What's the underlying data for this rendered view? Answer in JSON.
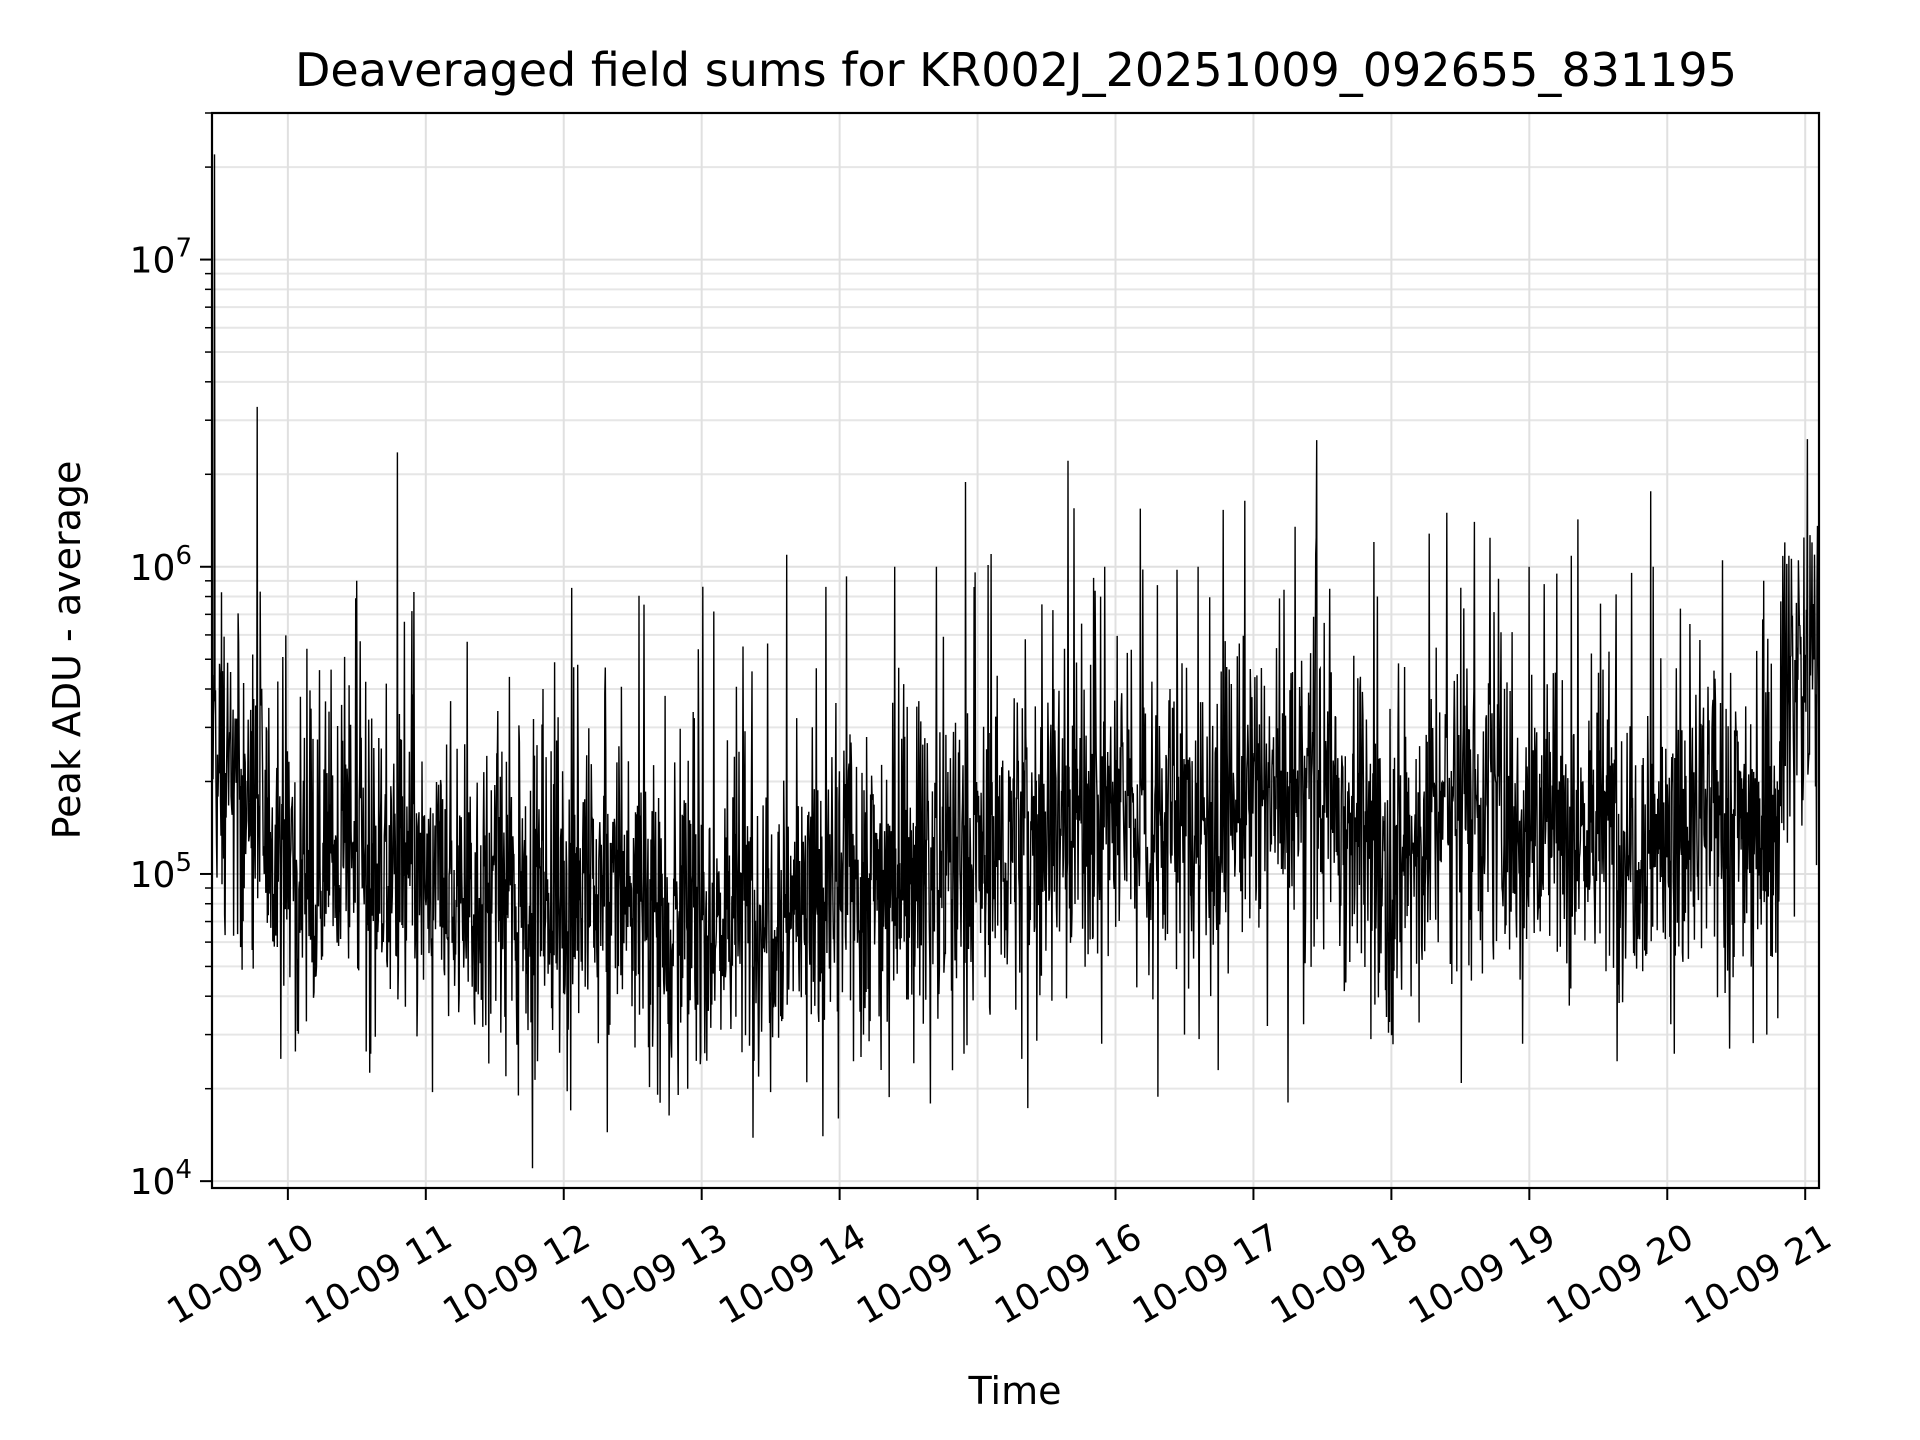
{
  "chart_data": {
    "type": "line",
    "title": "Deaveraged field sums for KR002J_20251009_092655_831195",
    "xlabel": "Time",
    "ylabel": "Peak ADU - average",
    "yscale": "log",
    "ylim": [
      9500,
      30000000
    ],
    "xlim_hours": [
      9.45,
      21.1
    ],
    "grid": true,
    "line_color": "#000000",
    "x_tick_labels": [
      "10-09 10",
      "10-09 11",
      "10-09 12",
      "10-09 13",
      "10-09 14",
      "10-09 15",
      "10-09 16",
      "10-09 17",
      "10-09 18",
      "10-09 19",
      "10-09 20",
      "10-09 21"
    ],
    "x_tick_hours": [
      10,
      11,
      12,
      13,
      14,
      15,
      16,
      17,
      18,
      19,
      20,
      21
    ],
    "y_tick_labels": [
      {
        "base": "10",
        "exp": "4",
        "value": 10000
      },
      {
        "base": "10",
        "exp": "5",
        "value": 100000
      },
      {
        "base": "10",
        "exp": "6",
        "value": 1000000
      },
      {
        "base": "10",
        "exp": "7",
        "value": 10000000
      }
    ],
    "series": [
      {
        "name": "deaveraged field sum",
        "baseline_hours": [
          9.45,
          9.6,
          10.0,
          10.5,
          11.0,
          11.5,
          12.0,
          12.5,
          13.0,
          13.5,
          14.0,
          14.5,
          15.0,
          15.5,
          16.0,
          16.5,
          17.0,
          17.5,
          18.0,
          18.5,
          19.0,
          19.5,
          20.0,
          20.5,
          20.8,
          20.85,
          21.1
        ],
        "baseline_values": [
          250000,
          200000,
          110000,
          120000,
          90000,
          85000,
          90000,
          90000,
          70000,
          80000,
          90000,
          110000,
          110000,
          150000,
          160000,
          150000,
          170000,
          200000,
          100000,
          190000,
          150000,
          140000,
          130000,
          160000,
          150000,
          420000,
          520000
        ],
        "spike_hours": [
          9.47,
          9.8,
          10.5,
          11.3,
          11.85,
          12.1,
          12.3,
          13.3,
          13.9,
          14.05,
          14.4,
          14.7,
          15.1,
          15.7,
          15.92,
          16.2,
          16.6,
          17.3,
          17.45,
          17.9,
          18.4,
          18.6,
          19.0,
          19.2,
          19.9,
          20.4,
          20.7,
          20.95,
          21.05
        ],
        "spike_values": [
          22000000,
          830000,
          900000,
          570000,
          400000,
          480000,
          470000,
          550000,
          860000,
          930000,
          1000000,
          1000000,
          1100000,
          1550000,
          1000000,
          980000,
          1000000,
          1350000,
          1100000,
          800000,
          1500000,
          1400000,
          1000000,
          950000,
          1000000,
          1050000,
          900000,
          1050000,
          1200000
        ],
        "dip_hours": [
          9.95,
          10.6,
          11.05,
          11.67,
          12.05,
          12.7,
          12.9,
          13.5,
          13.88,
          13.99,
          14.3,
          14.9,
          15.32,
          15.9,
          16.5,
          17.1,
          17.85,
          18.95,
          19.65,
          20.05,
          20.45,
          20.72
        ],
        "dip_values": [
          25000,
          26000,
          19500,
          19000,
          17000,
          18000,
          20000,
          19500,
          14000,
          16000,
          23000,
          26000,
          25000,
          28000,
          30000,
          32000,
          29000,
          28000,
          38000,
          26000,
          27000,
          30000
        ]
      }
    ]
  }
}
